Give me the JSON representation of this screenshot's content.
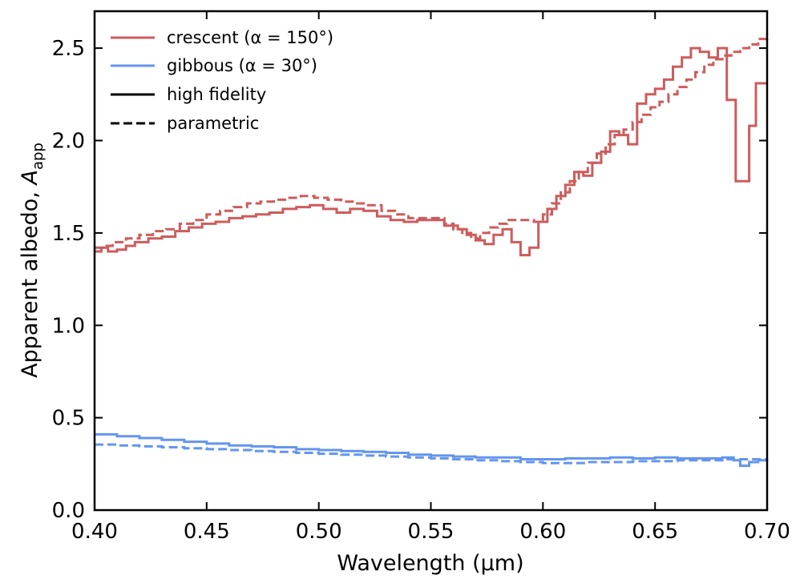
{
  "chart_data": {
    "type": "line",
    "title": "",
    "xlabel": "Wavelength (µm)",
    "ylabel_main": "Apparent albedo, ",
    "ylabel_symbol": "A",
    "ylabel_subscript": "app",
    "xlim": [
      0.4,
      0.7
    ],
    "ylim": [
      0.0,
      2.7
    ],
    "xticks": [
      0.4,
      0.45,
      0.5,
      0.55,
      0.6,
      0.65,
      0.7
    ],
    "xtick_labels": [
      "0.40",
      "0.45",
      "0.50",
      "0.55",
      "0.60",
      "0.65",
      "0.70"
    ],
    "yticks": [
      0.0,
      0.5,
      1.0,
      1.5,
      2.0,
      2.5
    ],
    "ytick_labels": [
      "0.0",
      "0.5",
      "1.0",
      "1.5",
      "2.0",
      "2.5"
    ],
    "grid": false,
    "legend_position": "top-left",
    "legend": [
      {
        "label": "crescent (α = 150°)",
        "color": "#cd5c5c",
        "style": "solid"
      },
      {
        "label": "gibbous (α = 30°)",
        "color": "#6495ed",
        "style": "solid"
      },
      {
        "label": "high fidelity",
        "color": "#000000",
        "style": "solid"
      },
      {
        "label": "parametric",
        "color": "#000000",
        "style": "dashed"
      }
    ],
    "series": [
      {
        "name": "crescent high fidelity",
        "color": "#cd5c5c",
        "style": "solid",
        "x": [
          0.4,
          0.403,
          0.406,
          0.41,
          0.414,
          0.418,
          0.424,
          0.43,
          0.436,
          0.442,
          0.448,
          0.454,
          0.46,
          0.466,
          0.472,
          0.478,
          0.484,
          0.49,
          0.496,
          0.502,
          0.508,
          0.514,
          0.52,
          0.526,
          0.532,
          0.538,
          0.544,
          0.55,
          0.556,
          0.562,
          0.566,
          0.57,
          0.574,
          0.578,
          0.582,
          0.586,
          0.59,
          0.594,
          0.598,
          0.602,
          0.606,
          0.61,
          0.614,
          0.618,
          0.622,
          0.626,
          0.63,
          0.634,
          0.638,
          0.642,
          0.646,
          0.65,
          0.654,
          0.658,
          0.662,
          0.666,
          0.67,
          0.674,
          0.678,
          0.682,
          0.686,
          0.689,
          0.692,
          0.695,
          0.697,
          0.7
        ],
        "y": [
          1.4,
          1.42,
          1.4,
          1.41,
          1.43,
          1.45,
          1.47,
          1.48,
          1.51,
          1.53,
          1.55,
          1.56,
          1.58,
          1.59,
          1.6,
          1.61,
          1.63,
          1.64,
          1.65,
          1.63,
          1.61,
          1.63,
          1.62,
          1.59,
          1.57,
          1.56,
          1.57,
          1.57,
          1.54,
          1.52,
          1.49,
          1.46,
          1.44,
          1.49,
          1.52,
          1.45,
          1.38,
          1.42,
          1.56,
          1.63,
          1.7,
          1.76,
          1.83,
          1.81,
          1.88,
          1.94,
          2.05,
          2.03,
          1.98,
          2.2,
          2.25,
          2.28,
          2.33,
          2.4,
          2.45,
          2.5,
          2.48,
          2.45,
          2.5,
          2.22,
          1.78,
          1.78,
          2.08,
          2.31,
          2.31,
          2.31
        ]
      },
      {
        "name": "crescent parametric",
        "color": "#cd5c5c",
        "style": "dashed",
        "x": [
          0.4,
          0.404,
          0.408,
          0.414,
          0.42,
          0.426,
          0.432,
          0.438,
          0.444,
          0.45,
          0.456,
          0.462,
          0.468,
          0.474,
          0.48,
          0.486,
          0.492,
          0.498,
          0.504,
          0.51,
          0.516,
          0.522,
          0.528,
          0.534,
          0.54,
          0.546,
          0.552,
          0.556,
          0.56,
          0.564,
          0.568,
          0.572,
          0.576,
          0.58,
          0.584,
          0.59,
          0.596,
          0.6,
          0.604,
          0.608,
          0.612,
          0.616,
          0.62,
          0.624,
          0.628,
          0.632,
          0.636,
          0.64,
          0.644,
          0.648,
          0.652,
          0.656,
          0.66,
          0.664,
          0.668,
          0.672,
          0.676,
          0.68,
          0.684,
          0.688,
          0.692,
          0.696,
          0.7
        ],
        "y": [
          1.42,
          1.43,
          1.45,
          1.47,
          1.49,
          1.51,
          1.52,
          1.55,
          1.57,
          1.6,
          1.62,
          1.64,
          1.66,
          1.67,
          1.68,
          1.69,
          1.7,
          1.69,
          1.68,
          1.67,
          1.66,
          1.65,
          1.62,
          1.6,
          1.58,
          1.58,
          1.58,
          1.55,
          1.52,
          1.5,
          1.47,
          1.5,
          1.53,
          1.55,
          1.57,
          1.57,
          1.56,
          1.6,
          1.66,
          1.72,
          1.78,
          1.83,
          1.88,
          1.93,
          1.98,
          2.03,
          2.06,
          2.1,
          2.14,
          2.18,
          2.21,
          2.25,
          2.29,
          2.33,
          2.37,
          2.41,
          2.44,
          2.46,
          2.48,
          2.5,
          2.52,
          2.55,
          2.58
        ]
      },
      {
        "name": "gibbous high fidelity",
        "color": "#6495ed",
        "style": "solid",
        "x": [
          0.4,
          0.41,
          0.42,
          0.43,
          0.44,
          0.45,
          0.46,
          0.47,
          0.48,
          0.49,
          0.5,
          0.51,
          0.52,
          0.53,
          0.54,
          0.55,
          0.56,
          0.57,
          0.58,
          0.59,
          0.6,
          0.61,
          0.62,
          0.63,
          0.64,
          0.65,
          0.66,
          0.67,
          0.68,
          0.685,
          0.688,
          0.692,
          0.696,
          0.7
        ],
        "y": [
          0.41,
          0.4,
          0.39,
          0.38,
          0.37,
          0.36,
          0.35,
          0.345,
          0.34,
          0.33,
          0.325,
          0.32,
          0.315,
          0.31,
          0.3,
          0.295,
          0.29,
          0.285,
          0.285,
          0.275,
          0.275,
          0.28,
          0.28,
          0.285,
          0.28,
          0.285,
          0.28,
          0.28,
          0.285,
          0.27,
          0.24,
          0.26,
          0.27,
          0.27
        ]
      },
      {
        "name": "gibbous parametric",
        "color": "#6495ed",
        "style": "dashed",
        "x": [
          0.4,
          0.41,
          0.42,
          0.43,
          0.44,
          0.45,
          0.46,
          0.47,
          0.48,
          0.49,
          0.5,
          0.51,
          0.52,
          0.53,
          0.54,
          0.55,
          0.56,
          0.57,
          0.58,
          0.59,
          0.6,
          0.61,
          0.62,
          0.63,
          0.64,
          0.65,
          0.66,
          0.67,
          0.68,
          0.69,
          0.7
        ],
        "y": [
          0.355,
          0.35,
          0.345,
          0.34,
          0.335,
          0.33,
          0.325,
          0.32,
          0.315,
          0.31,
          0.305,
          0.3,
          0.295,
          0.29,
          0.285,
          0.28,
          0.275,
          0.27,
          0.265,
          0.26,
          0.255,
          0.255,
          0.26,
          0.26,
          0.265,
          0.265,
          0.27,
          0.27,
          0.275,
          0.275,
          0.28
        ]
      }
    ]
  }
}
